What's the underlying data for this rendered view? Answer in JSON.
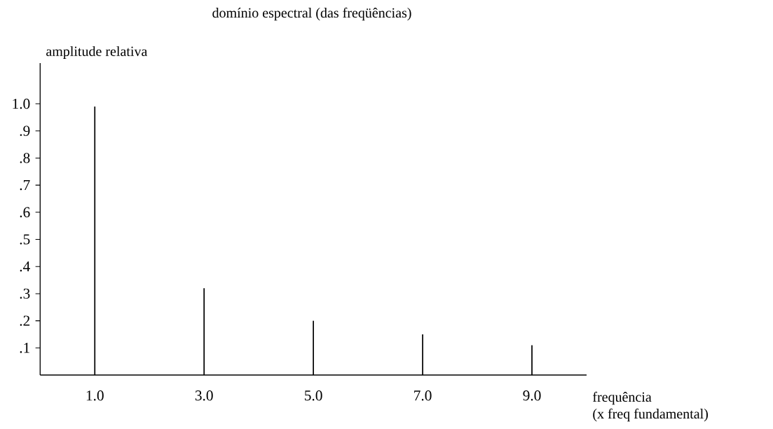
{
  "chart_data": {
    "type": "bar",
    "title": "domínio espectral (das freqüências)",
    "ylabel": "amplitude relativa",
    "xlabel": "frequência",
    "annotations": [
      "(x freq fundamental)"
    ],
    "x": [
      1,
      3,
      5,
      7,
      9
    ],
    "values": [
      0.99,
      0.32,
      0.2,
      0.15,
      0.11
    ],
    "color": "#000000",
    "xlim": [
      0,
      10
    ],
    "ylim": [
      0,
      1.15
    ],
    "xticks": [
      {
        "value": 1,
        "label": "1.0"
      },
      {
        "value": 3,
        "label": "3.0"
      },
      {
        "value": 5,
        "label": "5.0"
      },
      {
        "value": 7,
        "label": "7.0"
      },
      {
        "value": 9,
        "label": "9.0"
      }
    ],
    "yticks": [
      {
        "value": 0.1,
        "label": ".1"
      },
      {
        "value": 0.2,
        "label": ".2"
      },
      {
        "value": 0.3,
        "label": ".3"
      },
      {
        "value": 0.4,
        "label": ".4"
      },
      {
        "value": 0.5,
        "label": ".5"
      },
      {
        "value": 0.6,
        "label": ".6"
      },
      {
        "value": 0.7,
        "label": ".7"
      },
      {
        "value": 0.8,
        "label": ".8"
      },
      {
        "value": 0.9,
        "label": ".9"
      },
      {
        "value": 1.0,
        "label": "1.0"
      }
    ]
  }
}
